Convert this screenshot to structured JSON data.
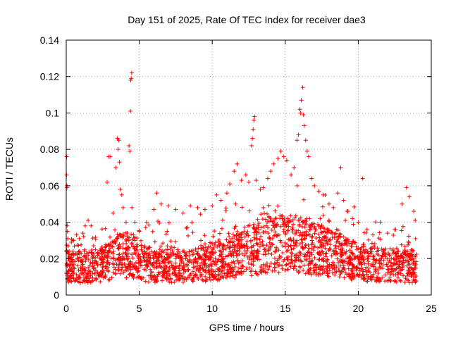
{
  "chart_data": {
    "type": "scatter",
    "title": "Day 151 of 2025, Rate Of TEC Index for receiver dae3",
    "xlabel": "GPS time / hours",
    "ylabel": "ROTI / TECUs",
    "xlim": [
      0,
      25
    ],
    "ylim": [
      0,
      0.14
    ],
    "x_ticks": [
      0,
      5,
      10,
      15,
      20,
      25
    ],
    "x_tick_labels": [
      "0",
      "5",
      "10",
      "15",
      "20",
      "25"
    ],
    "y_ticks": [
      0,
      0.02,
      0.04,
      0.06,
      0.08,
      0.1,
      0.12,
      0.14
    ],
    "y_tick_labels": [
      "0",
      "0.02",
      "0.04",
      "0.06",
      "0.08",
      "0.1",
      "0.12",
      "0.14"
    ],
    "grid": true,
    "marker": "+",
    "color": "#ff0000",
    "series": [
      {
        "values_note": "",
        "points": [
          [
            0.02,
            0.066
          ],
          [
            0.03,
            0.076
          ],
          [
            0.05,
            0.06
          ],
          [
            0.05,
            0.059
          ],
          [
            0.08,
            0.035
          ],
          [
            0.1,
            0.031
          ],
          [
            0.12,
            0.027
          ],
          [
            0.2,
            0.024
          ],
          [
            0.35,
            0.029
          ],
          [
            0.5,
            0.03
          ],
          [
            0.7,
            0.033
          ],
          [
            0.9,
            0.031
          ],
          [
            1.3,
            0.038
          ],
          [
            1.5,
            0.041
          ],
          [
            1.7,
            0.038
          ],
          [
            2.0,
            0.025
          ],
          [
            2.8,
            0.062
          ],
          [
            2.9,
            0.076
          ],
          [
            3.0,
            0.076
          ],
          [
            3.2,
            0.045
          ],
          [
            3.4,
            0.07
          ],
          [
            3.5,
            0.086
          ],
          [
            3.55,
            0.08
          ],
          [
            3.6,
            0.085
          ],
          [
            3.65,
            0.073
          ],
          [
            3.7,
            0.058
          ],
          [
            3.8,
            0.055
          ],
          [
            3.9,
            0.048
          ],
          [
            4.1,
            0.04
          ],
          [
            4.3,
            0.082
          ],
          [
            4.35,
            0.079
          ],
          [
            4.4,
            0.101
          ],
          [
            4.42,
            0.118
          ],
          [
            4.45,
            0.119
          ],
          [
            4.48,
            0.122
          ],
          [
            4.5,
            0.048
          ],
          [
            4.7,
            0.04
          ],
          [
            5.0,
            0.035
          ],
          [
            5.5,
            0.04
          ],
          [
            6.0,
            0.047
          ],
          [
            6.2,
            0.056
          ],
          [
            6.5,
            0.05
          ],
          [
            7.0,
            0.049
          ],
          [
            7.5,
            0.047
          ],
          [
            8.0,
            0.045
          ],
          [
            8.5,
            0.049
          ],
          [
            9.0,
            0.048
          ],
          [
            9.5,
            0.047
          ],
          [
            10.0,
            0.049
          ],
          [
            10.3,
            0.055
          ],
          [
            10.6,
            0.052
          ],
          [
            11.0,
            0.056
          ],
          [
            11.2,
            0.061
          ],
          [
            11.5,
            0.068
          ],
          [
            11.7,
            0.072
          ],
          [
            12.0,
            0.063
          ],
          [
            12.3,
            0.066
          ],
          [
            12.5,
            0.062
          ],
          [
            12.7,
            0.082
          ],
          [
            12.75,
            0.086
          ],
          [
            12.8,
            0.091
          ],
          [
            12.85,
            0.096
          ],
          [
            12.9,
            0.098
          ],
          [
            13.0,
            0.063
          ],
          [
            13.3,
            0.058
          ],
          [
            13.5,
            0.059
          ],
          [
            13.8,
            0.064
          ],
          [
            14.0,
            0.068
          ],
          [
            14.2,
            0.072
          ],
          [
            14.5,
            0.075
          ],
          [
            14.7,
            0.079
          ],
          [
            14.9,
            0.076
          ],
          [
            15.1,
            0.074
          ],
          [
            15.4,
            0.066
          ],
          [
            15.6,
            0.07
          ],
          [
            15.8,
            0.085
          ],
          [
            15.9,
            0.088
          ],
          [
            16.0,
            0.102
          ],
          [
            16.05,
            0.1
          ],
          [
            16.1,
            0.107
          ],
          [
            16.2,
            0.114
          ],
          [
            16.25,
            0.099
          ],
          [
            16.3,
            0.093
          ],
          [
            16.4,
            0.085
          ],
          [
            16.5,
            0.079
          ],
          [
            16.6,
            0.076
          ],
          [
            16.8,
            0.064
          ],
          [
            17.0,
            0.06
          ],
          [
            17.3,
            0.057
          ],
          [
            17.6,
            0.055
          ],
          [
            18.0,
            0.05
          ],
          [
            18.3,
            0.048
          ],
          [
            18.6,
            0.056
          ],
          [
            18.8,
            0.07
          ],
          [
            19.0,
            0.052
          ],
          [
            19.3,
            0.046
          ],
          [
            19.6,
            0.042
          ],
          [
            20.0,
            0.04
          ],
          [
            20.3,
            0.064
          ],
          [
            20.6,
            0.036
          ],
          [
            21.0,
            0.033
          ],
          [
            21.5,
            0.04
          ],
          [
            22.0,
            0.034
          ],
          [
            22.5,
            0.036
          ],
          [
            23.0,
            0.05
          ],
          [
            23.3,
            0.059
          ],
          [
            23.5,
            0.054
          ],
          [
            23.8,
            0.046
          ],
          [
            23.9,
            0.041
          ]
        ]
      }
    ]
  }
}
